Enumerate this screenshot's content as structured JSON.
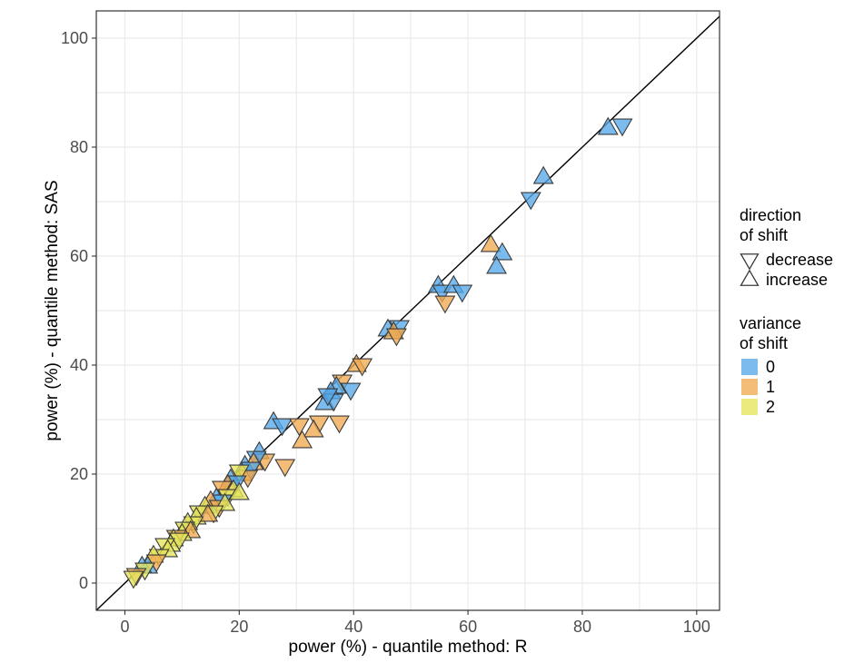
{
  "chart_data": {
    "type": "scatter",
    "title": "",
    "xlabel": "power (%) - quantile method: R",
    "ylabel": "power (%) - quantile method: SAS",
    "xlim": [
      -5,
      104
    ],
    "ylim": [
      -5,
      105
    ],
    "xticks": [
      "0",
      "20",
      "40",
      "60",
      "80",
      "100"
    ],
    "yticks": [
      "0",
      "20",
      "40",
      "60",
      "80",
      "100"
    ],
    "grid": true,
    "reference_line": "y = x",
    "legend_placement": "right",
    "legend": {
      "shape_title": [
        "direction",
        "of shift"
      ],
      "shapes": [
        {
          "label": "decrease",
          "marker": "triangle-down"
        },
        {
          "label": "increase",
          "marker": "triangle-up"
        }
      ],
      "color_title": [
        "variance",
        "of shift"
      ],
      "colors": [
        {
          "label": "0",
          "color": "#56a8e8"
        },
        {
          "label": "1",
          "color": "#f0aa52"
        },
        {
          "label": "2",
          "color": "#e6e45a"
        }
      ]
    },
    "points": [
      {
        "x": 84.5,
        "y": 83.5,
        "dir": "increase",
        "var": "0"
      },
      {
        "x": 87,
        "y": 84,
        "dir": "decrease",
        "var": "0"
      },
      {
        "x": 73.2,
        "y": 74.5,
        "dir": "increase",
        "var": "0"
      },
      {
        "x": 71,
        "y": 70.5,
        "dir": "decrease",
        "var": "0"
      },
      {
        "x": 64,
        "y": 62,
        "dir": "increase",
        "var": "1"
      },
      {
        "x": 66,
        "y": 60.5,
        "dir": "increase",
        "var": "0"
      },
      {
        "x": 65,
        "y": 58,
        "dir": "increase",
        "var": "0"
      },
      {
        "x": 54.8,
        "y": 54.5,
        "dir": "increase",
        "var": "0"
      },
      {
        "x": 55.5,
        "y": 53.5,
        "dir": "decrease",
        "var": "0"
      },
      {
        "x": 57.5,
        "y": 54.5,
        "dir": "increase",
        "var": "0"
      },
      {
        "x": 59,
        "y": 53.5,
        "dir": "decrease",
        "var": "0"
      },
      {
        "x": 56,
        "y": 51.5,
        "dir": "decrease",
        "var": "1"
      },
      {
        "x": 46,
        "y": 46.5,
        "dir": "increase",
        "var": "0"
      },
      {
        "x": 48,
        "y": 47,
        "dir": "decrease",
        "var": "0"
      },
      {
        "x": 47,
        "y": 46,
        "dir": "increase",
        "var": "1"
      },
      {
        "x": 47.5,
        "y": 45.5,
        "dir": "decrease",
        "var": "1"
      },
      {
        "x": 40.5,
        "y": 40,
        "dir": "increase",
        "var": "1"
      },
      {
        "x": 41.5,
        "y": 40,
        "dir": "decrease",
        "var": "1"
      },
      {
        "x": 38,
        "y": 37,
        "dir": "decrease",
        "var": "1"
      },
      {
        "x": 37,
        "y": 36,
        "dir": "increase",
        "var": "0"
      },
      {
        "x": 39.5,
        "y": 35.5,
        "dir": "decrease",
        "var": "0"
      },
      {
        "x": 36,
        "y": 35,
        "dir": "increase",
        "var": "0"
      },
      {
        "x": 35,
        "y": 33,
        "dir": "increase",
        "var": "0"
      },
      {
        "x": 36.5,
        "y": 33.5,
        "dir": "decrease",
        "var": "0"
      },
      {
        "x": 35.5,
        "y": 34.5,
        "dir": "decrease",
        "var": "0"
      },
      {
        "x": 26,
        "y": 29.5,
        "dir": "increase",
        "var": "0"
      },
      {
        "x": 27.5,
        "y": 29,
        "dir": "decrease",
        "var": "0"
      },
      {
        "x": 30.5,
        "y": 29,
        "dir": "decrease",
        "var": "1"
      },
      {
        "x": 34,
        "y": 29.5,
        "dir": "decrease",
        "var": "1"
      },
      {
        "x": 33,
        "y": 28,
        "dir": "increase",
        "var": "1"
      },
      {
        "x": 37.5,
        "y": 29.5,
        "dir": "decrease",
        "var": "1"
      },
      {
        "x": 31,
        "y": 26,
        "dir": "increase",
        "var": "1"
      },
      {
        "x": 23.5,
        "y": 24,
        "dir": "increase",
        "var": "0"
      },
      {
        "x": 24.5,
        "y": 22.5,
        "dir": "decrease",
        "var": "1"
      },
      {
        "x": 23,
        "y": 23,
        "dir": "decrease",
        "var": "0"
      },
      {
        "x": 22.5,
        "y": 22,
        "dir": "increase",
        "var": "1"
      },
      {
        "x": 21,
        "y": 21.5,
        "dir": "increase",
        "var": "0"
      },
      {
        "x": 22,
        "y": 21,
        "dir": "decrease",
        "var": "0"
      },
      {
        "x": 28,
        "y": 21.5,
        "dir": "decrease",
        "var": "1"
      },
      {
        "x": 20.5,
        "y": 20,
        "dir": "increase",
        "var": "1"
      },
      {
        "x": 21.5,
        "y": 19.5,
        "dir": "decrease",
        "var": "1"
      },
      {
        "x": 20,
        "y": 20.5,
        "dir": "decrease",
        "var": "2"
      },
      {
        "x": 18.5,
        "y": 19,
        "dir": "increase",
        "var": "0"
      },
      {
        "x": 19.5,
        "y": 18.5,
        "dir": "decrease",
        "var": "0"
      },
      {
        "x": 18,
        "y": 18,
        "dir": "increase",
        "var": "1"
      },
      {
        "x": 17,
        "y": 17.5,
        "dir": "decrease",
        "var": "1"
      },
      {
        "x": 19,
        "y": 17,
        "dir": "increase",
        "var": "2"
      },
      {
        "x": 18,
        "y": 16,
        "dir": "decrease",
        "var": "2"
      },
      {
        "x": 20,
        "y": 16.5,
        "dir": "increase",
        "var": "2"
      },
      {
        "x": 16,
        "y": 15.5,
        "dir": "increase",
        "var": "0"
      },
      {
        "x": 17,
        "y": 15,
        "dir": "decrease",
        "var": "0"
      },
      {
        "x": 15,
        "y": 15,
        "dir": "increase",
        "var": "1"
      },
      {
        "x": 16.5,
        "y": 14,
        "dir": "decrease",
        "var": "1"
      },
      {
        "x": 17.5,
        "y": 14.5,
        "dir": "increase",
        "var": "2"
      },
      {
        "x": 14,
        "y": 14,
        "dir": "increase",
        "var": "2"
      },
      {
        "x": 15.5,
        "y": 13,
        "dir": "decrease",
        "var": "2"
      },
      {
        "x": 13,
        "y": 13,
        "dir": "decrease",
        "var": "2"
      },
      {
        "x": 12.5,
        "y": 12,
        "dir": "increase",
        "var": "2"
      },
      {
        "x": 14.5,
        "y": 12.5,
        "dir": "increase",
        "var": "1"
      },
      {
        "x": 12,
        "y": 11,
        "dir": "decrease",
        "var": "2"
      },
      {
        "x": 11,
        "y": 11,
        "dir": "increase",
        "var": "2"
      },
      {
        "x": 10.5,
        "y": 10,
        "dir": "decrease",
        "var": "2"
      },
      {
        "x": 11.5,
        "y": 9.5,
        "dir": "increase",
        "var": "1"
      },
      {
        "x": 10,
        "y": 9,
        "dir": "increase",
        "var": "2"
      },
      {
        "x": 9,
        "y": 8.5,
        "dir": "decrease",
        "var": "1"
      },
      {
        "x": 8.5,
        "y": 8,
        "dir": "increase",
        "var": "2"
      },
      {
        "x": 9.5,
        "y": 8,
        "dir": "decrease",
        "var": "2"
      },
      {
        "x": 8,
        "y": 7,
        "dir": "increase",
        "var": "2"
      },
      {
        "x": 7,
        "y": 7,
        "dir": "decrease",
        "var": "2"
      },
      {
        "x": 7.5,
        "y": 6,
        "dir": "increase",
        "var": "2"
      },
      {
        "x": 6,
        "y": 5,
        "dir": "decrease",
        "var": "2"
      },
      {
        "x": 5,
        "y": 5,
        "dir": "increase",
        "var": "2"
      },
      {
        "x": 5.5,
        "y": 4,
        "dir": "decrease",
        "var": "1"
      },
      {
        "x": 4,
        "y": 3,
        "dir": "increase",
        "var": "0"
      },
      {
        "x": 3,
        "y": 3,
        "dir": "increase",
        "var": "0"
      },
      {
        "x": 3.5,
        "y": 2.5,
        "dir": "decrease",
        "var": "2"
      },
      {
        "x": 2,
        "y": 1.5,
        "dir": "decrease",
        "var": "1"
      },
      {
        "x": 1.5,
        "y": 1,
        "dir": "decrease",
        "var": "2"
      }
    ]
  }
}
